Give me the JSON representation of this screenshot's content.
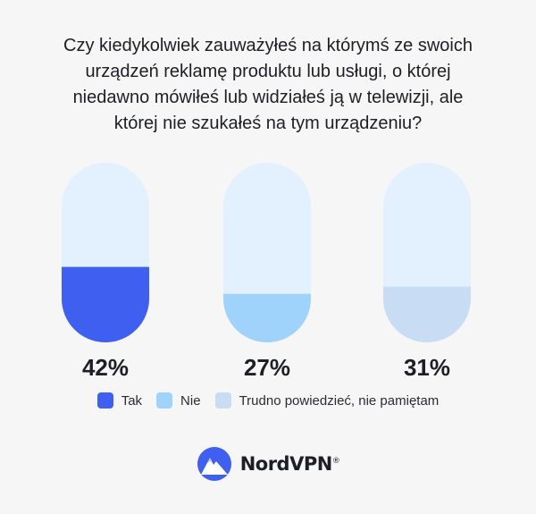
{
  "chart_data": {
    "type": "bar",
    "title": "Czy kiedykolwiek zauważyłeś na którymś ze swoich urządzeń reklamę produktu lub usługi, o której niedawno mówiłeś lub widziałeś ją w telewizji, ale której nie szukałeś na tym urządzeniu?",
    "title_lines": [
      "Czy kiedykolwiek zauważyłeś na którymś ze swoich",
      "urządzeń reklamę produktu lub usługi, o której",
      "niedawno mówiłeś lub widziałeś ją w telewizji, ale",
      "której nie szukałeś na tym urządzeniu?"
    ],
    "categories": [
      "Tak",
      "Nie",
      "Trudno powiedzieć, nie pamiętam"
    ],
    "values": [
      42,
      27,
      31
    ],
    "value_labels": [
      "42%",
      "27%",
      "31%"
    ],
    "unit": "%",
    "ylim": [
      0,
      100
    ],
    "colors": [
      "#3e5ff0",
      "#9fd3fb",
      "#c8dcf3"
    ],
    "track_color": "#e3f0fd",
    "legend_position": "bottom-center"
  },
  "brand": {
    "name": "NordVPN",
    "trademark": "®",
    "color": "#3e5ff0"
  }
}
